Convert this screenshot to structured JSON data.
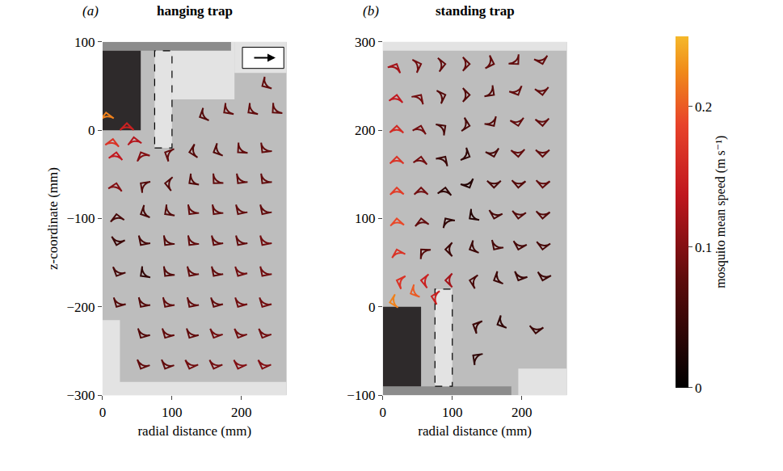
{
  "chart_data": [
    {
      "type": "quiver",
      "letter": "(a)",
      "title": "hanging trap",
      "x_label": "radial distance (mm)",
      "y_label": "z-coordinate (mm)",
      "xlim": [
        0,
        265
      ],
      "ylim": [
        -300,
        100
      ],
      "xticks": [
        0,
        100,
        200
      ],
      "yticks": [
        -300,
        -200,
        -100,
        0,
        100
      ],
      "x": [
        5,
        15,
        35,
        45,
        140,
        175,
        210,
        245,
        230,
        20,
        55,
        90,
        125,
        160,
        195,
        230,
        20,
        55,
        90,
        125,
        160,
        195,
        230,
        20,
        55,
        90,
        125,
        160,
        195,
        230,
        20,
        55,
        90,
        125,
        160,
        195,
        230,
        20,
        55,
        90,
        125,
        160,
        195,
        230,
        20,
        55,
        90,
        125,
        160,
        195,
        230,
        55,
        90,
        125,
        160,
        195,
        230,
        55,
        90,
        125,
        160,
        195,
        230
      ],
      "y": [
        20,
        -10,
        8,
        -8,
        15,
        20,
        20,
        20,
        50,
        -25,
        -25,
        -25,
        -25,
        -25,
        -25,
        -25,
        -60,
        -60,
        -60,
        -60,
        -60,
        -60,
        -60,
        -95,
        -95,
        -95,
        -95,
        -95,
        -95,
        -95,
        -130,
        -130,
        -130,
        -130,
        -130,
        -130,
        -130,
        -165,
        -165,
        -165,
        -165,
        -165,
        -165,
        -165,
        -200,
        -200,
        -200,
        -200,
        -200,
        -200,
        -200,
        -235,
        -235,
        -235,
        -235,
        -235,
        -235,
        -270,
        -270,
        -270,
        -270,
        -270,
        -270
      ],
      "angle": [
        100,
        80,
        90,
        100,
        200,
        210,
        210,
        215,
        205,
        80,
        120,
        160,
        190,
        200,
        215,
        225,
        75,
        150,
        175,
        210,
        220,
        225,
        225,
        100,
        200,
        210,
        225,
        225,
        230,
        230,
        250,
        230,
        225,
        225,
        230,
        230,
        230,
        240,
        210,
        225,
        230,
        230,
        235,
        230,
        235,
        230,
        230,
        230,
        235,
        235,
        235,
        235,
        235,
        235,
        240,
        240,
        240,
        240,
        240,
        245,
        245,
        245,
        245
      ],
      "speed": [
        0.22,
        0.17,
        0.15,
        0.13,
        0.07,
        0.08,
        0.08,
        0.08,
        0.08,
        0.14,
        0.1,
        0.08,
        0.07,
        0.07,
        0.08,
        0.08,
        0.1,
        0.07,
        0.07,
        0.07,
        0.08,
        0.08,
        0.08,
        0.06,
        0.06,
        0.07,
        0.08,
        0.08,
        0.08,
        0.08,
        0.05,
        0.06,
        0.07,
        0.08,
        0.08,
        0.08,
        0.09,
        0.06,
        0.04,
        0.07,
        0.08,
        0.08,
        0.09,
        0.09,
        0.07,
        0.07,
        0.08,
        0.08,
        0.08,
        0.09,
        0.09,
        0.07,
        0.08,
        0.08,
        0.09,
        0.09,
        0.09,
        0.08,
        0.08,
        0.09,
        0.09,
        0.1,
        0.1
      ],
      "trap": {
        "body": [
          0,
          55,
          0,
          90
        ],
        "plate": [
          0,
          185,
          90,
          100
        ],
        "inlet": [
          75,
          100,
          -20,
          90
        ]
      },
      "masks": [
        [
          100,
          190,
          35,
          100
        ],
        [
          190,
          265,
          65,
          100
        ],
        [
          0,
          25,
          -300,
          -215
        ],
        [
          0,
          265,
          -300,
          -285
        ]
      ]
    },
    {
      "type": "quiver",
      "letter": "(b)",
      "title": "standing trap",
      "x_label": "radial distance (mm)",
      "xlim": [
        0,
        265
      ],
      "ylim": [
        -100,
        300
      ],
      "xticks": [
        0,
        100,
        200
      ],
      "yticks": [
        -100,
        0,
        100,
        200,
        300
      ],
      "x": [
        10,
        40,
        70,
        130,
        165,
        130,
        220,
        20,
        55,
        90,
        125,
        160,
        195,
        230,
        20,
        55,
        90,
        125,
        160,
        195,
        230,
        20,
        55,
        90,
        125,
        160,
        195,
        230,
        20,
        55,
        90,
        125,
        160,
        195,
        230,
        20,
        55,
        90,
        125,
        160,
        195,
        230,
        20,
        55,
        90,
        125,
        160,
        195,
        230,
        20,
        55,
        90,
        125,
        160,
        195,
        230,
        20,
        55,
        90,
        125,
        160,
        195,
        230
      ],
      "y": [
        5,
        15,
        12,
        -20,
        -20,
        -55,
        -30,
        275,
        275,
        275,
        275,
        275,
        275,
        275,
        240,
        240,
        240,
        240,
        240,
        240,
        240,
        205,
        205,
        205,
        205,
        205,
        205,
        205,
        170,
        170,
        170,
        170,
        170,
        170,
        170,
        135,
        135,
        135,
        135,
        135,
        135,
        135,
        100,
        100,
        100,
        100,
        100,
        100,
        100,
        65,
        65,
        65,
        65,
        65,
        65,
        65,
        30,
        30,
        30,
        30,
        30,
        30,
        30
      ],
      "angle": [
        190,
        200,
        170,
        160,
        200,
        150,
        -100,
        60,
        15,
        5,
        0,
        -15,
        -40,
        -70,
        80,
        50,
        15,
        0,
        -30,
        -60,
        -80,
        88,
        70,
        30,
        -10,
        -50,
        -75,
        -85,
        90,
        80,
        50,
        -20,
        -70,
        -85,
        -90,
        92,
        90,
        80,
        -60,
        -90,
        -95,
        -95,
        95,
        100,
        130,
        -150,
        -110,
        -100,
        -95,
        110,
        140,
        180,
        -160,
        -130,
        -110,
        -100,
        165,
        175,
        180,
        170,
        200,
        -120,
        -110
      ],
      "speed": [
        0.22,
        0.2,
        0.15,
        0.05,
        0.04,
        0.04,
        0.05,
        0.12,
        0.09,
        0.08,
        0.08,
        0.08,
        0.08,
        0.08,
        0.14,
        0.09,
        0.07,
        0.07,
        0.07,
        0.08,
        0.08,
        0.16,
        0.09,
        0.06,
        0.06,
        0.07,
        0.08,
        0.08,
        0.17,
        0.09,
        0.05,
        0.04,
        0.06,
        0.08,
        0.08,
        0.18,
        0.09,
        0.04,
        0.03,
        0.06,
        0.07,
        0.08,
        0.19,
        0.08,
        0.04,
        0.03,
        0.06,
        0.07,
        0.07,
        0.17,
        0.07,
        0.05,
        0.05,
        0.06,
        0.06,
        0.06,
        0.17,
        0.15,
        0.12,
        0.06,
        0.05,
        0.05,
        0.05
      ],
      "trap": {
        "body": [
          0,
          55,
          -90,
          0
        ],
        "plate": [
          0,
          185,
          -100,
          -90
        ],
        "inlet": [
          75,
          100,
          -90,
          20
        ]
      },
      "masks": [
        [
          0,
          265,
          290,
          300
        ],
        [
          195,
          265,
          -100,
          -70
        ]
      ]
    }
  ],
  "colorbar": {
    "title": "mosquito mean speed (m s⁻¹)",
    "range": [
      0,
      0.25
    ],
    "ticks": [
      0,
      0.1,
      0.2
    ]
  }
}
